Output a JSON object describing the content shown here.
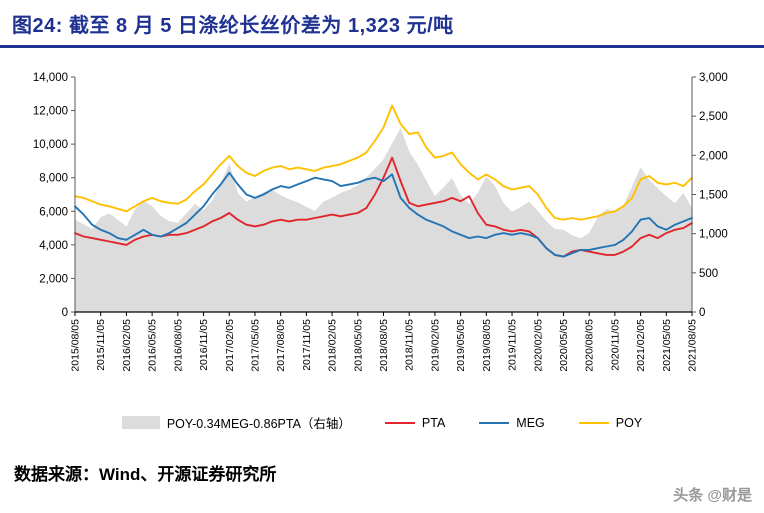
{
  "header": {
    "title": "图24:  截至 8 月 5 日涤纶长丝价差为 1,323 元/吨"
  },
  "footer": {
    "source": "数据来源：Wind、开源证券研究所",
    "watermark": "头条 @财是"
  },
  "colors": {
    "title": "#1F3292",
    "pta": "#E0262C",
    "meg": "#2274B5",
    "poy": "#FFC000",
    "area": "#DCDCDC",
    "axis": "#595959"
  },
  "chart_data": {
    "type": "line",
    "title": "截至 8 月 5 日涤纶长丝价差为 1,323 元/吨",
    "xlabel": "",
    "ylabel": "",
    "grid": false,
    "legend_position": "bottom",
    "left_axis": {
      "min": 0,
      "max": 14000,
      "step": 2000,
      "ticks": [
        "0",
        "2,000",
        "4,000",
        "6,000",
        "8,000",
        "10,000",
        "12,000",
        "14,000"
      ]
    },
    "right_axis": {
      "min": 0,
      "max": 3000,
      "step": 500,
      "ticks": [
        "0",
        "500",
        "1,000",
        "1,500",
        "2,000",
        "2,500",
        "3,000"
      ]
    },
    "x_tick_labels": [
      "2015/08/05",
      "2015/11/05",
      "2016/02/05",
      "2016/05/05",
      "2016/08/05",
      "2016/11/05",
      "2017/02/05",
      "2017/05/05",
      "2017/08/05",
      "2017/11/05",
      "2018/02/05",
      "2018/05/05",
      "2018/08/05",
      "2018/11/05",
      "2019/02/05",
      "2019/05/05",
      "2019/08/05",
      "2019/11/05",
      "2020/02/05",
      "2020/05/05",
      "2020/08/05",
      "2020/11/05",
      "2021/02/05",
      "2021/05/05",
      "2021/08/05"
    ],
    "x_tick_every_nth_point": 3,
    "series": [
      {
        "name": "POY-0.34MEG-0.86PTA（右轴）",
        "type": "area",
        "axis": "right",
        "color_key": "area",
        "values": [
          1180,
          1120,
          1060,
          1210,
          1260,
          1180,
          1090,
          1310,
          1420,
          1350,
          1230,
          1160,
          1140,
          1260,
          1380,
          1300,
          1420,
          1640,
          1900,
          1520,
          1410,
          1470,
          1530,
          1560,
          1490,
          1440,
          1400,
          1340,
          1290,
          1410,
          1460,
          1520,
          1560,
          1620,
          1720,
          1830,
          1950,
          2150,
          2350,
          2050,
          1880,
          1680,
          1480,
          1590,
          1710,
          1490,
          1380,
          1520,
          1730,
          1610,
          1390,
          1280,
          1340,
          1410,
          1290,
          1160,
          1060,
          1050,
          980,
          940,
          1010,
          1210,
          1310,
          1290,
          1360,
          1600,
          1850,
          1690,
          1580,
          1480,
          1390,
          1520,
          1323
        ]
      },
      {
        "name": "PTA",
        "type": "line",
        "axis": "left",
        "color_key": "pta",
        "values": [
          4700,
          4500,
          4400,
          4300,
          4200,
          4100,
          4000,
          4300,
          4500,
          4600,
          4500,
          4600,
          4600,
          4700,
          4900,
          5100,
          5400,
          5600,
          5900,
          5500,
          5200,
          5100,
          5200,
          5400,
          5500,
          5400,
          5500,
          5500,
          5600,
          5700,
          5800,
          5700,
          5800,
          5900,
          6200,
          7000,
          8000,
          9200,
          7800,
          6500,
          6300,
          6400,
          6500,
          6600,
          6800,
          6600,
          6900,
          5900,
          5200,
          5100,
          4900,
          4800,
          4900,
          4800,
          4400,
          3800,
          3400,
          3300,
          3600,
          3700,
          3600,
          3500,
          3400,
          3400,
          3600,
          3900,
          4400,
          4600,
          4400,
          4700,
          4900,
          5000,
          5300
        ]
      },
      {
        "name": "MEG",
        "type": "line",
        "axis": "left",
        "color_key": "meg",
        "values": [
          6300,
          5800,
          5200,
          4900,
          4700,
          4400,
          4300,
          4600,
          4900,
          4600,
          4500,
          4700,
          5000,
          5300,
          5800,
          6300,
          7000,
          7600,
          8300,
          7600,
          7000,
          6800,
          7000,
          7300,
          7500,
          7400,
          7600,
          7800,
          8000,
          7900,
          7800,
          7500,
          7600,
          7700,
          7900,
          8000,
          7800,
          8200,
          6800,
          6200,
          5800,
          5500,
          5300,
          5100,
          4800,
          4600,
          4400,
          4500,
          4400,
          4600,
          4700,
          4600,
          4700,
          4600,
          4400,
          3800,
          3400,
          3300,
          3500,
          3700,
          3700,
          3800,
          3900,
          4000,
          4300,
          4800,
          5500,
          5600,
          5100,
          4900,
          5200,
          5400,
          5600
        ]
      },
      {
        "name": "POY",
        "type": "line",
        "axis": "left",
        "color_key": "poy",
        "values": [
          6900,
          6800,
          6600,
          6400,
          6300,
          6150,
          6000,
          6300,
          6600,
          6800,
          6600,
          6500,
          6450,
          6700,
          7200,
          7600,
          8200,
          8800,
          9300,
          8700,
          8300,
          8100,
          8400,
          8600,
          8700,
          8500,
          8600,
          8500,
          8400,
          8600,
          8700,
          8800,
          9000,
          9200,
          9500,
          10200,
          11000,
          12300,
          11200,
          10600,
          10700,
          9800,
          9200,
          9300,
          9500,
          8800,
          8300,
          7900,
          8200,
          7900,
          7500,
          7300,
          7400,
          7500,
          7000,
          6200,
          5600,
          5500,
          5600,
          5500,
          5600,
          5700,
          5900,
          6000,
          6300,
          6800,
          7900,
          8100,
          7700,
          7600,
          7700,
          7500,
          8000
        ]
      }
    ],
    "legend": [
      {
        "label": "POY-0.34MEG-0.86PTA（右轴）",
        "swatch": "area",
        "color_key": "area"
      },
      {
        "label": "PTA",
        "swatch": "line",
        "color_key": "pta"
      },
      {
        "label": "MEG",
        "swatch": "line",
        "color_key": "meg"
      },
      {
        "label": "POY",
        "swatch": "line",
        "color_key": "poy"
      }
    ]
  }
}
